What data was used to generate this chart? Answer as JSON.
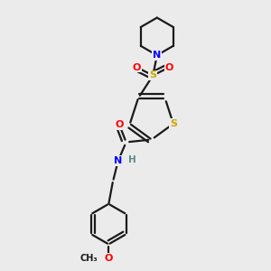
{
  "bg_color": "#ebebeb",
  "bond_color": "#1a1a1a",
  "colors": {
    "S": "#c8a800",
    "O": "#ff0000",
    "N": "#0000ff",
    "C": "#1a1a1a",
    "H": "#5a8a8a"
  },
  "bond_width": 1.6,
  "figsize": [
    3.0,
    3.0
  ],
  "dpi": 100
}
